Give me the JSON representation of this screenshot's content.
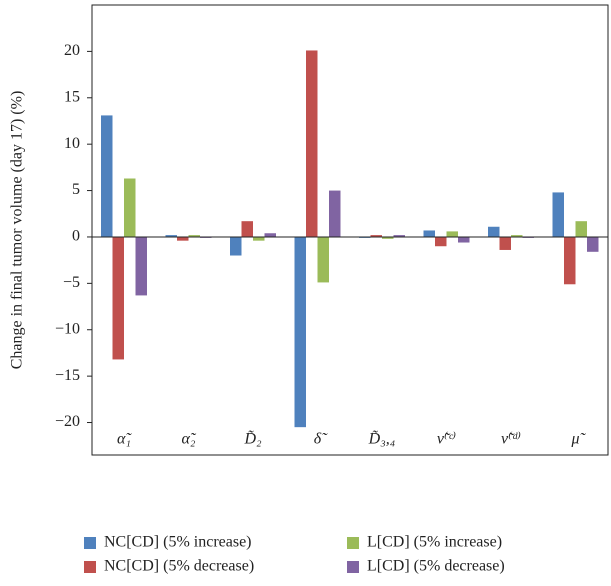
{
  "chart_data": {
    "type": "bar",
    "y_label": "Change in final tumor volume (day 17) (%)",
    "categories": [
      "α̃₁",
      "α̃₂",
      "D̃₂",
      "δ̃",
      "D̃₃,₄",
      "ν̃⁽ᶜ⁾",
      "ν̃⁽ᵈ⁾",
      "μ̃"
    ],
    "series": [
      {
        "name": "NC[CD] (5% increase)",
        "color": "#4f81bd",
        "values": [
          13.1,
          0.2,
          -2.0,
          -20.5,
          -0.1,
          0.7,
          1.1,
          4.8
        ]
      },
      {
        "name": "NC[CD] (5% decrease)",
        "color": "#c0504d",
        "values": [
          -13.2,
          -0.4,
          1.7,
          20.1,
          0.2,
          -1.0,
          -1.4,
          -5.1
        ]
      },
      {
        "name": "L[CD] (5% increase)",
        "color": "#9bbb59",
        "values": [
          6.3,
          0.2,
          -0.4,
          -4.9,
          -0.2,
          0.6,
          0.2,
          1.7
        ]
      },
      {
        "name": "L[CD] (5% decrease)",
        "color": "#8064a2",
        "values": [
          -6.3,
          -0.1,
          0.4,
          5.0,
          0.2,
          -0.6,
          -0.1,
          -1.6
        ]
      }
    ],
    "ylim": [
      -23.5,
      25
    ],
    "yticks": [
      {
        "value": -20,
        "label": "−20"
      },
      {
        "value": -15,
        "label": "−15"
      },
      {
        "value": -10,
        "label": "−10"
      },
      {
        "value": -5,
        "label": "−5"
      },
      0,
      5,
      10,
      15,
      20
    ],
    "grid": false
  }
}
